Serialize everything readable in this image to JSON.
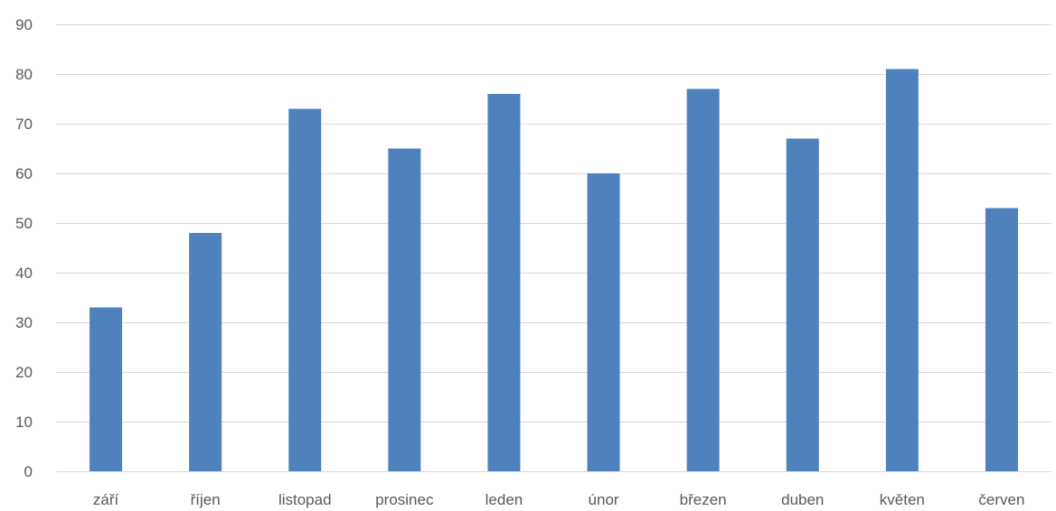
{
  "chart_data": {
    "type": "bar",
    "title": "",
    "xlabel": "",
    "ylabel": "",
    "categories": [
      "září",
      "říjen",
      "listopad",
      "prosinec",
      "leden",
      "únor",
      "březen",
      "duben",
      "květen",
      "červen"
    ],
    "series": [
      {
        "values": [
          33,
          48,
          73,
          65,
          76,
          60,
          77,
          67,
          81,
          53
        ]
      }
    ],
    "ylim": [
      0,
      90
    ],
    "yticks": [
      0,
      10,
      20,
      30,
      40,
      50,
      60,
      70,
      80,
      90
    ],
    "grid": true,
    "legend": "none",
    "colors": {
      "bar": "#4f81bd",
      "grid": "#d9d9d9",
      "text": "#595959"
    }
  }
}
